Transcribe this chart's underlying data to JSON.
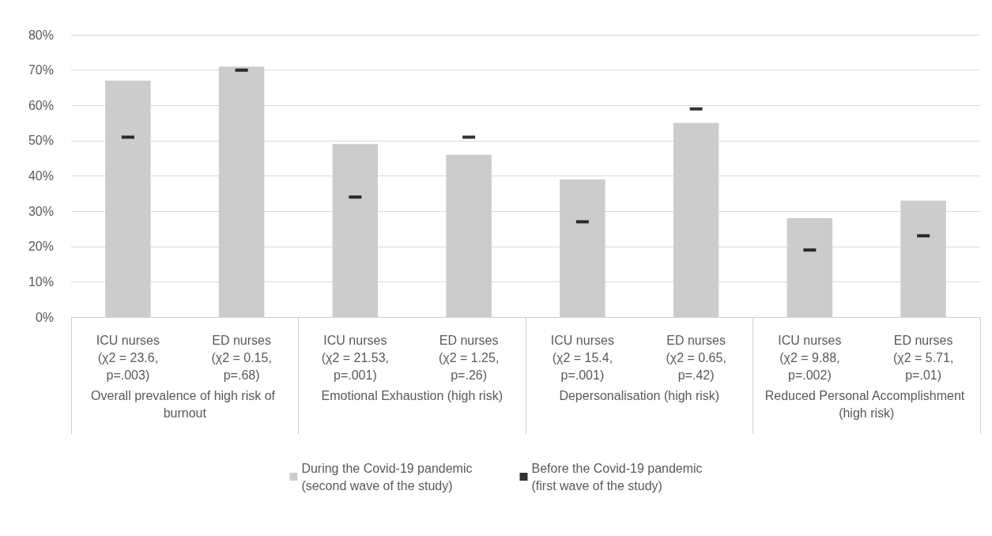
{
  "chart_data": {
    "type": "bar",
    "categories": [
      "ICU nurses\n(χ2 = 23.6,\np=.003)",
      "ED nurses\n(χ2 = 0.15,\np=.68)",
      "ICU nurses\n(χ2 = 21.53,\np=.001)",
      "ED nurses\n(χ2 = 1.25,\np=.26)",
      "ICU nurses\n(χ2 = 15.4,\np=.001)",
      "ED nurses\n(χ2 = 0.65,\np=.42)",
      "ICU nurses\n(χ2 = 9.88,\np=.002)",
      "ED nurses\n(χ2 = 5.71,\np=.01)"
    ],
    "annotations": [
      "Overall prevalence of high risk of burnout",
      "Emotional Exhaustion (high risk)",
      "Depersonalisation (high risk)",
      "Reduced Personal Accomplishment (high risk)"
    ],
    "series": [
      {
        "name": "During the Covid-19 pandemic\n(second wave of the study)",
        "type": "bar",
        "color": "#cccccc",
        "values": [
          67,
          71,
          49,
          46,
          39,
          55,
          28,
          33
        ]
      },
      {
        "name": "Before the Covid-19 pandemic\n(first wave of the study)",
        "type": "scatter",
        "color": "#000000",
        "values": [
          51,
          70,
          34,
          51,
          27,
          59,
          19,
          23
        ]
      }
    ],
    "ylim": [
      0,
      80
    ],
    "yticks": [
      {
        "value": 0,
        "label": "0%"
      },
      {
        "value": 10,
        "label": "10%"
      },
      {
        "value": 20,
        "label": "20%"
      },
      {
        "value": 30,
        "label": "30%"
      },
      {
        "value": 40,
        "label": "40%"
      },
      {
        "value": 50,
        "label": "50%"
      },
      {
        "value": 60,
        "label": "60%"
      },
      {
        "value": 70,
        "label": "70%"
      },
      {
        "value": 80,
        "label": "80%"
      }
    ],
    "grid": "y",
    "legend": "bottom"
  }
}
